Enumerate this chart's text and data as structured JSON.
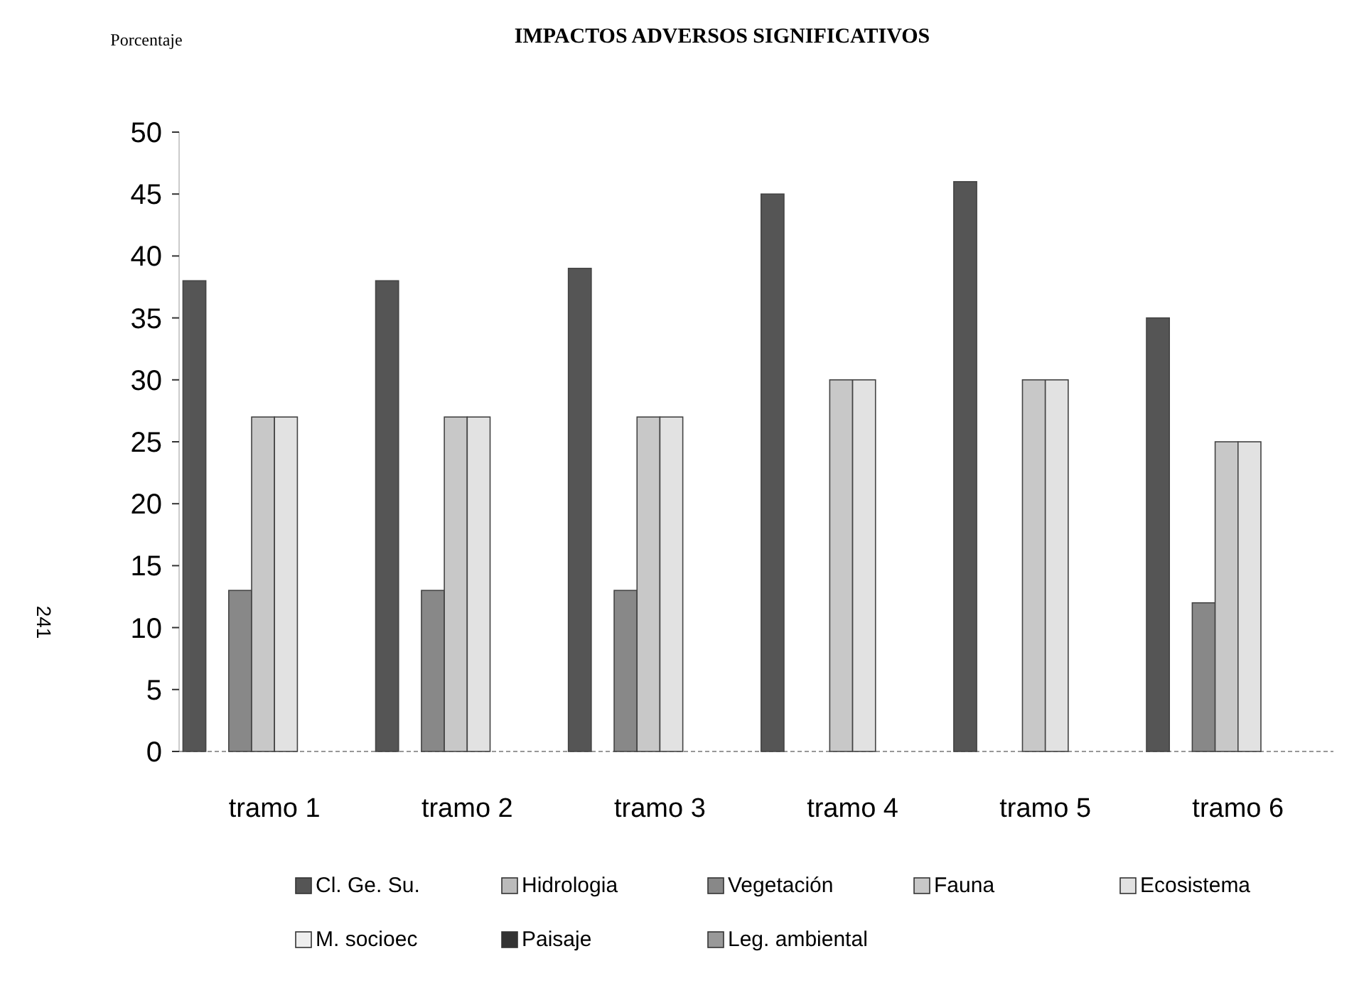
{
  "chart_data": {
    "type": "bar",
    "title": "IMPACTOS ADVERSOS SIGNIFICATIVOS",
    "ylabel": "Porcentaje",
    "annotations": [
      "241"
    ],
    "categories": [
      "tramo 1",
      "tramo 2",
      "tramo 3",
      "tramo 4",
      "tramo 5",
      "tramo 6"
    ],
    "series": [
      {
        "name": "Cl. Ge. Su.",
        "color": "#555555",
        "values": [
          38,
          38,
          39,
          45,
          46,
          35
        ]
      },
      {
        "name": "Hidrologia",
        "color": "#bbbbbb",
        "values": [
          0,
          0,
          0,
          0,
          0,
          0
        ]
      },
      {
        "name": "Vegetación",
        "color": "#888888",
        "values": [
          13,
          13,
          13,
          0,
          0,
          12
        ]
      },
      {
        "name": "Fauna",
        "color": "#c8c8c8",
        "values": [
          27,
          27,
          27,
          30,
          30,
          25
        ]
      },
      {
        "name": "Ecosistema",
        "color": "#e2e2e2",
        "values": [
          27,
          27,
          27,
          30,
          30,
          25
        ]
      },
      {
        "name": "M. socioec",
        "color": "#eeeeee",
        "values": [
          0,
          0,
          0,
          0,
          0,
          0
        ]
      },
      {
        "name": "Paisaje",
        "color": "#333333",
        "values": [
          0,
          0,
          0,
          0,
          0,
          0
        ]
      },
      {
        "name": "Leg. ambiental",
        "color": "#999999",
        "values": [
          0,
          0,
          0,
          0,
          0,
          0
        ]
      }
    ],
    "ylim": [
      0,
      50
    ],
    "yticks": [
      0,
      5,
      10,
      15,
      20,
      25,
      30,
      35,
      40,
      45,
      50
    ],
    "grid": false,
    "legend": "bottom"
  }
}
